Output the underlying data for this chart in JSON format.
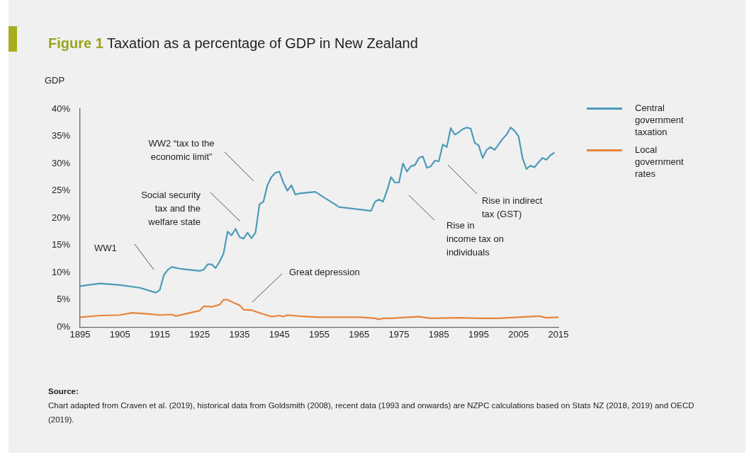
{
  "chart_data": {
    "type": "line",
    "title": "Figure 1 Taxation as a percentage of GDP in New Zealand",
    "ylabel": "GDP",
    "xlim": [
      1895,
      2015
    ],
    "xticks": [
      1895,
      1905,
      1915,
      1925,
      1935,
      1945,
      1955,
      1965,
      1975,
      1985,
      1995,
      2005,
      2015
    ],
    "ylim": [
      0,
      40
    ],
    "yticks": [
      {
        "value": 0,
        "label": "0%"
      },
      {
        "value": 5,
        "label": "5%"
      },
      {
        "value": 10,
        "label": "10%"
      },
      {
        "value": 15,
        "label": "15%"
      },
      {
        "value": 20,
        "label": "20%"
      },
      {
        "value": 25,
        "label": "25%"
      },
      {
        "value": 30,
        "label": "30%"
      },
      {
        "value": 35,
        "label": "35%"
      },
      {
        "value": 40,
        "label": "40%"
      }
    ],
    "grid": false,
    "legend": "right",
    "marker": "none",
    "line_style": "solid",
    "series": [
      {
        "name": "Central government taxation",
        "color": "#4a9bb8",
        "x": [
          1895,
          1900,
          1905,
          1910,
          1914,
          1915,
          1916,
          1917,
          1918,
          1920,
          1925,
          1926,
          1927,
          1928,
          1929,
          1930,
          1931,
          1932,
          1933,
          1934,
          1935,
          1936,
          1937,
          1938,
          1939,
          1940,
          1941,
          1942,
          1943,
          1944,
          1945,
          1946,
          1947,
          1948,
          1949,
          1950,
          1954,
          1960,
          1968,
          1969,
          1970,
          1971,
          1972,
          1973,
          1974,
          1975,
          1976,
          1977,
          1978,
          1979,
          1980,
          1981,
          1982,
          1983,
          1984,
          1985,
          1986,
          1987,
          1988,
          1989,
          1990,
          1991,
          1992,
          1993,
          1994,
          1995,
          1996,
          1997,
          1998,
          1999,
          2000,
          2001,
          2002,
          2003,
          2004,
          2005,
          2006,
          2007,
          2008,
          2009,
          2010,
          2011,
          2012,
          2013,
          2014
        ],
        "values": [
          7.5,
          8.0,
          7.7,
          7.2,
          6.3,
          6.8,
          9.5,
          10.5,
          11.0,
          10.7,
          10.3,
          10.5,
          11.5,
          11.5,
          10.8,
          12.0,
          13.5,
          17.5,
          16.8,
          18.0,
          16.5,
          16.2,
          17.3,
          16.3,
          17.3,
          22.5,
          23.0,
          26.0,
          27.5,
          28.3,
          28.5,
          26.5,
          25.0,
          26.0,
          24.3,
          24.5,
          24.8,
          22.0,
          21.3,
          23.0,
          23.4,
          23.0,
          25.0,
          27.5,
          26.5,
          26.5,
          30.0,
          28.5,
          29.5,
          29.7,
          31.0,
          31.3,
          29.2,
          29.5,
          30.5,
          30.4,
          33.5,
          33.0,
          36.5,
          35.3,
          35.7,
          36.3,
          36.6,
          36.4,
          33.8,
          33.3,
          31.0,
          32.5,
          33.0,
          32.5,
          33.5,
          34.5,
          35.3,
          36.6,
          36.0,
          35.0,
          31.0,
          29.0,
          29.6,
          29.3,
          30.2,
          31.0,
          30.7,
          31.5,
          32.0
        ]
      },
      {
        "name": "Local government rates",
        "color": "#e8843a",
        "x": [
          1895,
          1900,
          1905,
          1908,
          1912,
          1915,
          1918,
          1919,
          1922,
          1925,
          1926,
          1928,
          1930,
          1931,
          1932,
          1934,
          1935,
          1936,
          1938,
          1940,
          1943,
          1945,
          1946,
          1947,
          1950,
          1955,
          1965,
          1969,
          1970,
          1971,
          1973,
          1975,
          1980,
          1983,
          1990,
          1995,
          2000,
          2005,
          2010,
          2012,
          2015
        ],
        "values": [
          1.8,
          2.1,
          2.2,
          2.6,
          2.4,
          2.2,
          2.3,
          2.0,
          2.5,
          3.0,
          3.8,
          3.7,
          4.1,
          5.0,
          5.0,
          4.3,
          4.0,
          3.2,
          3.1,
          2.6,
          1.9,
          2.1,
          1.9,
          2.2,
          2.0,
          1.8,
          1.8,
          1.6,
          1.4,
          1.6,
          1.6,
          1.7,
          1.9,
          1.6,
          1.7,
          1.6,
          1.6,
          1.8,
          2.0,
          1.7,
          1.8
        ]
      }
    ],
    "annotations": [
      "WW1",
      "Social security\ntax and the\nwelfare state",
      "WW2 “tax to the\neconomic limit”",
      "Great depression",
      "Rise in\nincome tax on\nindividuals",
      "Rise in indirect\ntax (GST)",
      "Source:",
      "Chart adapted from Craven et al. (2019), historical data from Goldsmith (2008), recent data (1993 and onwards) are NZPC calculations based on Stats NZ (2018, 2019) and OECD (2019)."
    ]
  }
}
